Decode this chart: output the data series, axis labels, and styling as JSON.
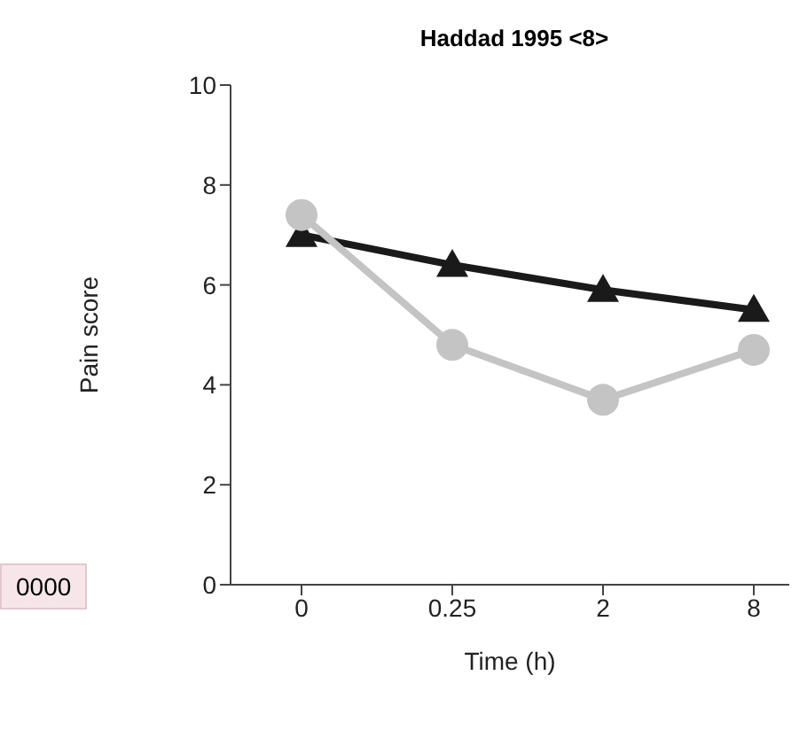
{
  "chart_data": {
    "type": "line",
    "title": "Haddad 1995 <8>",
    "xlabel": "Time (h)",
    "ylabel": "Pain score",
    "categories": [
      "0",
      "0.25",
      "2",
      "8"
    ],
    "series": [
      {
        "color": "#1a1a1a",
        "values": [
          7.0,
          6.4,
          5.9,
          5.5
        ],
        "marker": "triangle"
      },
      {
        "color": "#c4c4c4",
        "values": [
          7.4,
          4.8,
          3.7,
          4.7
        ],
        "marker": "circle"
      }
    ],
    "ylim": [
      0,
      10
    ],
    "yticks": [
      0,
      2,
      4,
      6,
      8,
      10
    ],
    "line_style": "solid",
    "annotations": [
      "0000"
    ]
  }
}
